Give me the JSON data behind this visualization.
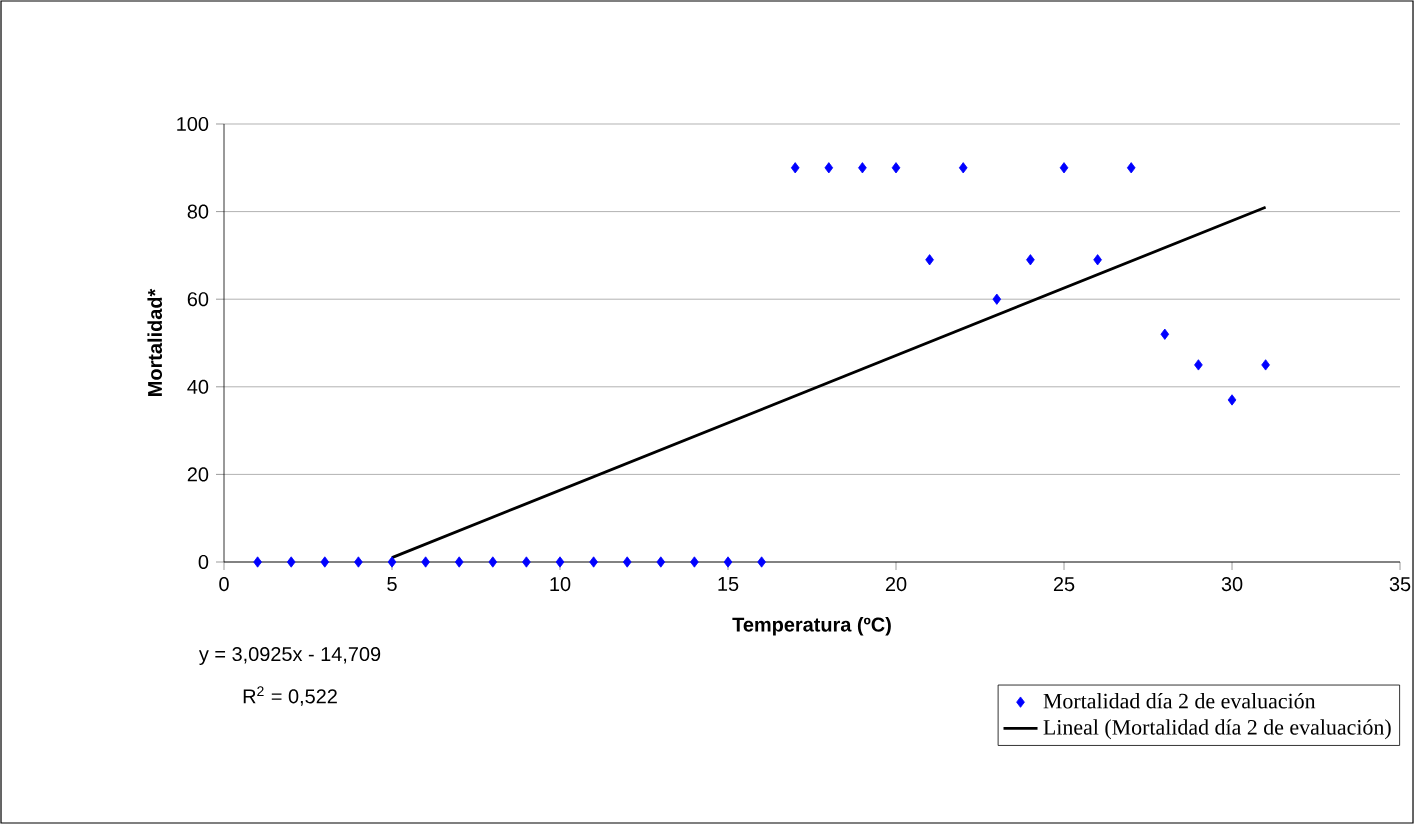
{
  "chart_data": {
    "type": "scatter",
    "xlabel": "Temperatura (ºC)",
    "ylabel": "Mortalidad*",
    "xlim": [
      0,
      35
    ],
    "xticks": [
      0,
      5,
      10,
      15,
      20,
      25,
      30,
      35
    ],
    "ylim": [
      0,
      100
    ],
    "yticks": [
      0,
      20,
      40,
      60,
      80,
      100
    ],
    "grid": "y",
    "legend": "bottom right",
    "series": [
      {
        "name": "Mortalidad día 2 de evaluación",
        "color": "#0000ff",
        "marker": "diamond",
        "x": [
          1,
          2,
          3,
          4,
          5,
          6,
          7,
          8,
          9,
          10,
          11,
          12,
          13,
          14,
          15,
          16,
          17,
          18,
          19,
          20,
          21,
          22,
          23,
          24,
          25,
          26,
          27,
          28,
          29,
          30,
          31
        ],
        "values": [
          0,
          0,
          0,
          0,
          0,
          0,
          0,
          0,
          0,
          0,
          0,
          0,
          0,
          0,
          0,
          0,
          90,
          90,
          90,
          90,
          69,
          90,
          60,
          69,
          90,
          69,
          90,
          52,
          45,
          37,
          45
        ]
      },
      {
        "name": "Lineal (Mortalidad día 2 de evaluación)",
        "color": "#000000",
        "type": "line",
        "marker": "none",
        "x": [
          5,
          31
        ],
        "values": [
          1,
          81
        ]
      }
    ],
    "annotations": [
      "y = 3,0925x - 14,709",
      "R$^{2}$ = 0,522"
    ]
  }
}
